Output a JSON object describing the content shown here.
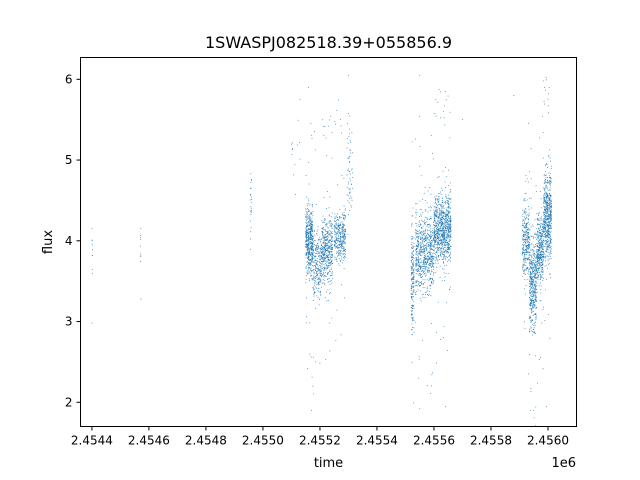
{
  "chart_data": {
    "type": "scatter",
    "title": "1SWASPJ082518.39+055856.9",
    "xlabel": "time",
    "ylabel": "flux",
    "x_offset_label": "1e6",
    "xlim": [
      2454360,
      2456100
    ],
    "ylim": [
      1.7,
      6.27
    ],
    "x_ticks": [
      2454400,
      2454600,
      2454800,
      2455000,
      2455200,
      2455400,
      2455600,
      2455800,
      2456000
    ],
    "x_tick_labels": [
      "2.4544",
      "2.4546",
      "2.4548",
      "2.4550",
      "2.4552",
      "2.4554",
      "2.4556",
      "2.4558",
      "2.4560"
    ],
    "y_ticks": [
      2,
      3,
      4,
      5,
      6
    ],
    "y_tick_labels": [
      "2",
      "3",
      "4",
      "5",
      "6"
    ],
    "grid": false,
    "point_color": "#1f77b4",
    "series": [
      {
        "clusters": [
          {
            "x": [
              2454400,
              2454402
            ],
            "y_center": 3.85,
            "y_spread": 0.25,
            "n": 10
          },
          {
            "x": [
              2454570,
              2454572
            ],
            "y_center": 3.9,
            "y_spread": 0.2,
            "n": 10
          },
          {
            "x": [
              2454955,
              2454960
            ],
            "y_center": 4.45,
            "y_spread": 0.35,
            "n": 25
          },
          {
            "x": [
              2455100,
              2455130
            ],
            "y_center": 5.0,
            "y_spread": 0.4,
            "n": 12
          },
          {
            "x": [
              2455150,
              2455175
            ],
            "y_center": 4.0,
            "y_spread": 0.35,
            "n": 500
          },
          {
            "x": [
              2455175,
              2455205
            ],
            "y_center": 3.7,
            "y_spread": 0.35,
            "n": 250
          },
          {
            "x": [
              2455205,
              2455245
            ],
            "y_center": 3.9,
            "y_spread": 0.35,
            "n": 450
          },
          {
            "x": [
              2455250,
              2455290
            ],
            "y_center": 4.05,
            "y_spread": 0.25,
            "n": 350
          },
          {
            "x": [
              2455295,
              2455315
            ],
            "y_center": 4.9,
            "y_spread": 0.6,
            "n": 60
          },
          {
            "x": [
              2455520,
              2455530
            ],
            "y_center": 3.5,
            "y_spread": 0.55,
            "n": 180
          },
          {
            "x": [
              2455535,
              2455600
            ],
            "y_center": 3.85,
            "y_spread": 0.4,
            "n": 700
          },
          {
            "x": [
              2455600,
              2455660
            ],
            "y_center": 4.15,
            "y_spread": 0.35,
            "n": 900
          },
          {
            "x": [
              2455910,
              2455935
            ],
            "y_center": 4.0,
            "y_spread": 0.4,
            "n": 300
          },
          {
            "x": [
              2455935,
              2455960
            ],
            "y_center": 3.45,
            "y_spread": 0.45,
            "n": 450
          },
          {
            "x": [
              2455960,
              2455985
            ],
            "y_center": 3.9,
            "y_spread": 0.35,
            "n": 400
          },
          {
            "x": [
              2455985,
              2456012
            ],
            "y_center": 4.3,
            "y_spread": 0.45,
            "n": 600
          }
        ],
        "outliers": [
          [
            2455130,
            5.75
          ],
          [
            2455160,
            5.9
          ],
          [
            2455170,
            1.9
          ],
          [
            2455300,
            6.05
          ],
          [
            2455550,
            6.05
          ],
          [
            2455550,
            1.92
          ],
          [
            2455640,
            5.85
          ],
          [
            2455640,
            1.95
          ],
          [
            2455880,
            5.8
          ],
          [
            2455950,
            1.9
          ],
          [
            2455985,
            5.98
          ],
          [
            2455995,
            1.95
          ],
          [
            2455175,
            2.2
          ],
          [
            2455700,
            5.5
          ],
          [
            2455185,
            2.5
          ]
        ]
      }
    ]
  }
}
